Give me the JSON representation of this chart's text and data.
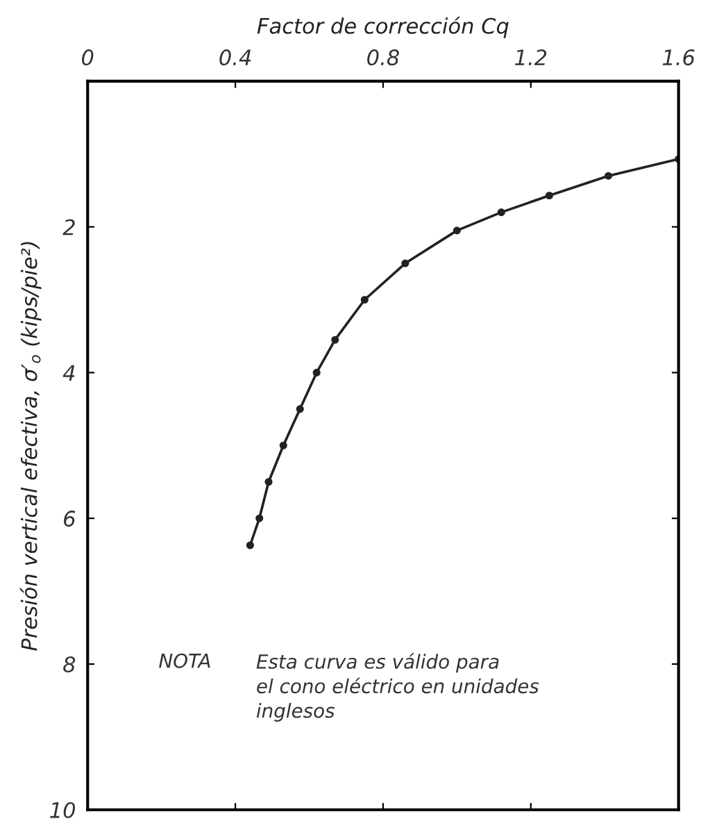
{
  "chart_data": {
    "type": "line",
    "xlabel": "Factor de corrección Cq",
    "ylabel": "Presión vertical efectiva, σ′$_{o}$ (kips/pie²)",
    "x": [
      0.44,
      0.465,
      0.49,
      0.53,
      0.575,
      0.62,
      0.67,
      0.75,
      0.86,
      1.0,
      1.12,
      1.25,
      1.41,
      1.6
    ],
    "series": [
      {
        "color": "#222222",
        "values": [
          6.37,
          6.0,
          5.5,
          5.0,
          4.5,
          4.0,
          3.55,
          3.0,
          2.5,
          2.05,
          1.8,
          1.57,
          1.3,
          1.07
        ]
      }
    ],
    "xlim": [
      0,
      1.6
    ],
    "xticks": [
      0,
      0.4,
      0.8,
      1.2,
      1.6
    ],
    "ylim": [
      10,
      0
    ],
    "yticks": [
      {
        "value": 0,
        "label": null
      },
      2,
      4,
      6,
      8,
      10
    ],
    "annotations": [
      "NOTA",
      "Esta curva es válido para\nel cono eléctrico en unidades\ninglesos"
    ],
    "marker": "circle",
    "line_style": "solid",
    "grid": false,
    "legend": false
  }
}
